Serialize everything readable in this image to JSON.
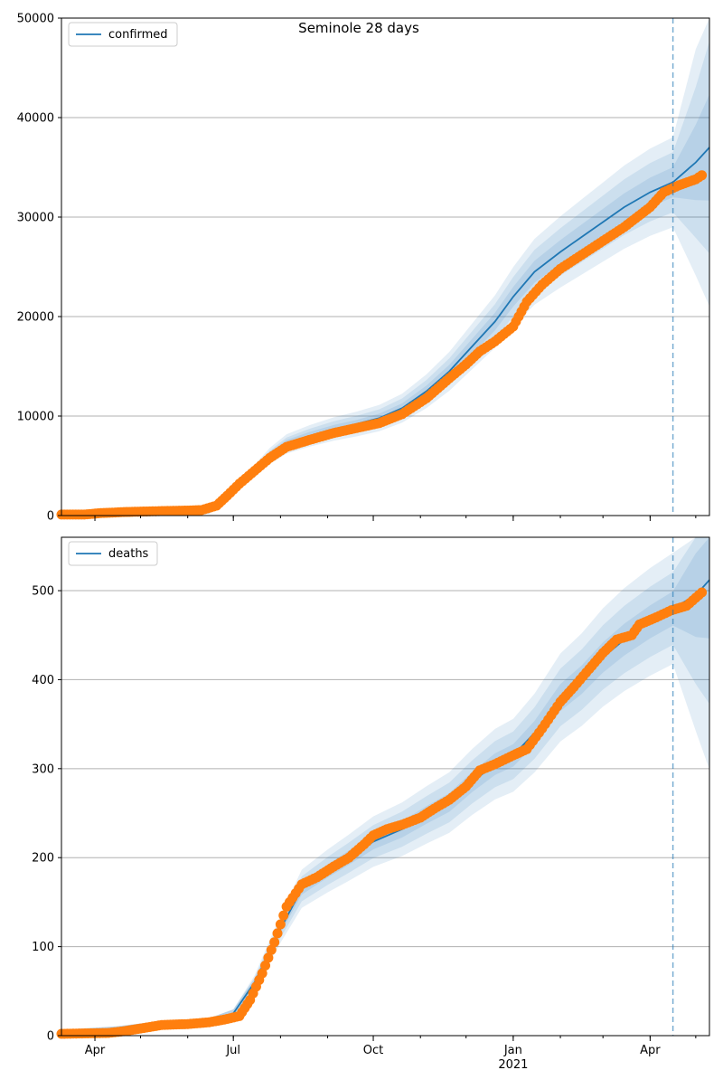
{
  "figure": {
    "title": "Seminole 28 days"
  },
  "colors": {
    "model_line": "#1f77b4",
    "band": "#1f77b4",
    "observed": "#ff7f0e",
    "grid": "#b0b0b0",
    "forecast_marker": "#1f77b4"
  },
  "chart_data": [
    {
      "type": "line",
      "name": "confirmed-panel",
      "title": "Seminole 28 days",
      "legend": {
        "label": "confirmed",
        "position": "top-left"
      },
      "x_range": [
        "2020-03-10",
        "2021-05-10"
      ],
      "ylim": [
        0,
        50000
      ],
      "yticks": [
        0,
        10000,
        20000,
        30000,
        40000,
        50000
      ],
      "grid": "y-only",
      "forecast_start": "2021-04-16",
      "model": {
        "dates": [
          "2020-03-10",
          "2020-04-01",
          "2020-05-01",
          "2020-06-01",
          "2020-06-15",
          "2020-06-25",
          "2020-07-05",
          "2020-07-15",
          "2020-07-25",
          "2020-08-05",
          "2020-08-20",
          "2020-09-05",
          "2020-09-20",
          "2020-10-05",
          "2020-10-20",
          "2020-11-05",
          "2020-11-20",
          "2020-12-05",
          "2020-12-20",
          "2021-01-01",
          "2021-01-15",
          "2021-02-01",
          "2021-02-15",
          "2021-03-01",
          "2021-03-15",
          "2021-04-01",
          "2021-04-16",
          "2021-05-01",
          "2021-05-10"
        ],
        "values": [
          100,
          200,
          400,
          500,
          600,
          1500,
          3000,
          4500,
          6000,
          7200,
          8000,
          8700,
          9200,
          9800,
          10800,
          12500,
          14500,
          17000,
          19500,
          22000,
          24500,
          26500,
          28000,
          29500,
          31000,
          32500,
          33500,
          35500,
          37000
        ],
        "band_rel": [
          0.045,
          0.09,
          0.135
        ]
      },
      "observed": {
        "dates": [
          "2020-03-10",
          "2020-03-25",
          "2020-04-05",
          "2020-04-20",
          "2020-05-01",
          "2020-05-15",
          "2020-06-01",
          "2020-06-10",
          "2020-06-20",
          "2020-06-27",
          "2020-07-05",
          "2020-07-15",
          "2020-07-25",
          "2020-08-05",
          "2020-08-20",
          "2020-09-05",
          "2020-09-20",
          "2020-10-05",
          "2020-10-20",
          "2020-11-05",
          "2020-11-20",
          "2020-12-01",
          "2020-12-10",
          "2020-12-20",
          "2021-01-01",
          "2021-01-10",
          "2021-01-20",
          "2021-02-01",
          "2021-02-15",
          "2021-03-01",
          "2021-03-15",
          "2021-04-01",
          "2021-04-10",
          "2021-04-20",
          "2021-05-01",
          "2021-05-05"
        ],
        "values": [
          100,
          100,
          250,
          350,
          400,
          450,
          500,
          550,
          1000,
          2000,
          3200,
          4500,
          5800,
          6900,
          7600,
          8300,
          8800,
          9300,
          10200,
          11800,
          13800,
          15200,
          16500,
          17500,
          19000,
          21500,
          23200,
          24800,
          26200,
          27600,
          29000,
          31000,
          32500,
          33200,
          33800,
          34200
        ]
      }
    },
    {
      "type": "line",
      "name": "deaths-panel",
      "legend": {
        "label": "deaths",
        "position": "top-left"
      },
      "x_range": [
        "2020-03-10",
        "2021-05-10"
      ],
      "ylim": [
        0,
        560
      ],
      "yticks": [
        0,
        100,
        200,
        300,
        400,
        500
      ],
      "grid": "y-only",
      "forecast_start": "2021-04-16",
      "xticks": [
        {
          "date": "2020-04-01",
          "label": "Apr"
        },
        {
          "date": "2020-07-01",
          "label": "Jul"
        },
        {
          "date": "2020-10-01",
          "label": "Oct"
        },
        {
          "date": "2021-01-01",
          "label": "Jan",
          "sublabel": "2021"
        },
        {
          "date": "2021-04-01",
          "label": "Apr"
        }
      ],
      "model": {
        "dates": [
          "2020-03-10",
          "2020-04-15",
          "2020-05-15",
          "2020-06-15",
          "2020-07-01",
          "2020-07-15",
          "2020-08-01",
          "2020-08-15",
          "2020-09-01",
          "2020-09-15",
          "2020-10-01",
          "2020-10-20",
          "2020-11-05",
          "2020-11-20",
          "2020-12-05",
          "2020-12-20",
          "2021-01-01",
          "2021-01-15",
          "2021-02-01",
          "2021-02-15",
          "2021-03-01",
          "2021-03-15",
          "2021-04-01",
          "2021-04-16",
          "2021-05-01",
          "2021-05-10"
        ],
        "values": [
          2,
          6,
          12,
          15,
          25,
          60,
          120,
          165,
          185,
          200,
          218,
          232,
          248,
          262,
          285,
          305,
          315,
          340,
          380,
          400,
          425,
          445,
          465,
          480,
          495,
          512
        ],
        "band_rel": [
          0.04,
          0.085,
          0.13
        ]
      },
      "observed": {
        "dates": [
          "2020-03-10",
          "2020-04-10",
          "2020-04-20",
          "2020-05-01",
          "2020-05-15",
          "2020-06-01",
          "2020-06-15",
          "2020-06-25",
          "2020-07-05",
          "2020-07-12",
          "2020-07-20",
          "2020-07-28",
          "2020-08-05",
          "2020-08-15",
          "2020-08-25",
          "2020-09-05",
          "2020-09-15",
          "2020-09-25",
          "2020-10-01",
          "2020-10-10",
          "2020-10-20",
          "2020-11-01",
          "2020-11-10",
          "2020-11-20",
          "2020-12-01",
          "2020-12-10",
          "2020-12-20",
          "2021-01-01",
          "2021-01-10",
          "2021-01-20",
          "2021-02-01",
          "2021-02-10",
          "2021-02-20",
          "2021-03-01",
          "2021-03-10",
          "2021-03-20",
          "2021-03-25",
          "2021-04-05",
          "2021-04-15",
          "2021-04-25",
          "2021-05-05"
        ],
        "values": [
          2,
          3,
          5,
          8,
          12,
          13,
          15,
          18,
          22,
          40,
          70,
          105,
          145,
          170,
          178,
          190,
          200,
          215,
          225,
          232,
          237,
          245,
          255,
          265,
          280,
          298,
          305,
          315,
          322,
          345,
          375,
          392,
          412,
          430,
          445,
          450,
          462,
          470,
          478,
          483,
          498
        ]
      }
    }
  ]
}
